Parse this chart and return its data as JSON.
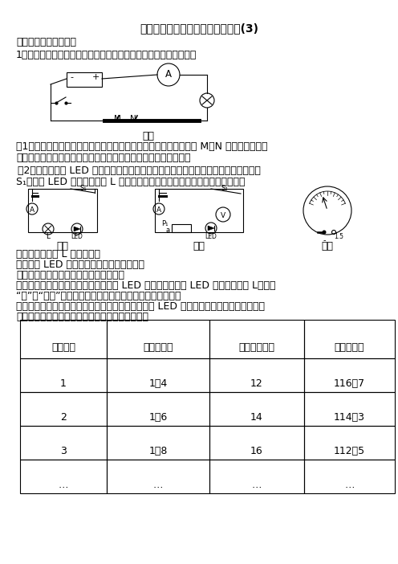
{
  "title": "初中物理中考电学实验测试含答案(3)",
  "section1": "一、中考物理电学实验",
  "q1_text": "1．小明利用铅笔芯和鳄鱼夹制作了简易调光灯，装置如图甲所示。",
  "fig_label1": "图甲",
  "q1_1": "（1）甲图中有一处明显错误是＿；改正后，闭合开关，改变鳄鱼夹 M、N 之间距离，发现",
  "q1_1b": "灯泡亮度会发生变化，这一现象说明导体的电阔与导体的＿有关．",
  "q1_2": "（2）小明用一个 LED 灯替换铁笔芯，与小灯泡串联后接入电路（如图乙），闭合开关",
  "q1_2b": "S₁，发现 LED 灯亮而小灯泡 L 不亮，针对这种现象，同学们提出了以下猜想：",
  "fig_label2": "图乙",
  "fig_label3": "图丙",
  "fig_label4": "图丁",
  "guess1": "猜想一：小灯泡 L 处发生短路",
  "guess2": "猜想二： LED 灯电阔很大导致电路电流很小",
  "verify": "为了验证猜想，小组同学进行如下实验：",
  "exp1a": "实验一：将一根导线并联在图乙电路中 LED 灯的两端，此时 LED 灯＿，小灯泡 L＿（填",
  "exp1b": "“亮”或“不亮”），根据观察到的现象说明猜想一是错误的．",
  "exp2a": "实验二：利用电流表和电压表，按图丙所示的电路对 LED 灯的电阔进行测量．闭合开关依",
  "exp2b": "次移动滑动变阔器的滑片，获得多组数据如下表．",
  "table_headers": [
    "实验次数",
    "电压（伏）",
    "电流（毫安）",
    "电阔（欧）"
  ],
  "table_rows": [
    [
      "1",
      "1．4",
      "12",
      "116．7"
    ],
    [
      "2",
      "1．6",
      "14",
      "114．3"
    ],
    [
      "3",
      "1．8",
      "16",
      "112．5"
    ],
    [
      "…",
      "…",
      "…",
      "…"
    ]
  ]
}
